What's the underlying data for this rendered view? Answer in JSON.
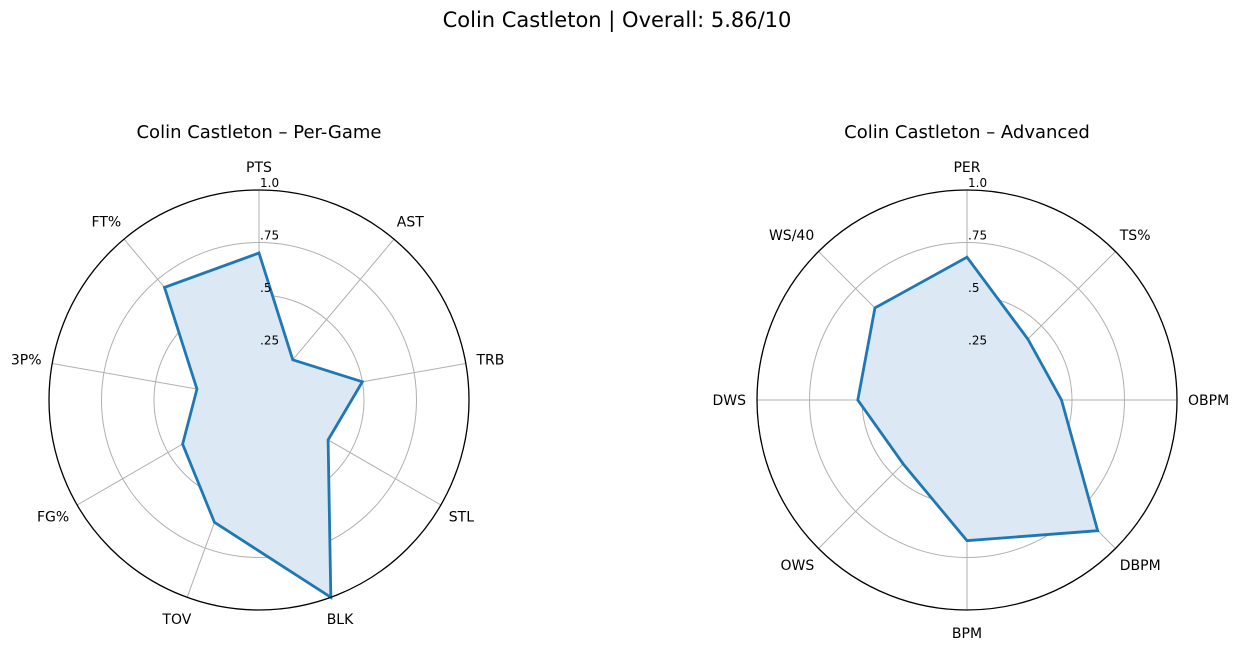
{
  "figure": {
    "suptitle": "Colin Castleton | Overall: 5.86/10"
  },
  "chart_data": [
    {
      "type": "radar",
      "title": "Colin Castleton – Per-Game",
      "axes": [
        "PTS",
        "AST",
        "TRB",
        "STL",
        "BLK",
        "TOV",
        "FG%",
        "3P%",
        "FT%"
      ],
      "values": [
        0.7,
        0.25,
        0.5,
        0.38,
        1.0,
        0.62,
        0.42,
        0.3,
        0.7
      ],
      "rlim": [
        0,
        1
      ],
      "rticks": [
        0.25,
        0.5,
        0.75,
        1.0
      ],
      "rtick_labels": [
        ".25",
        ".5",
        ".75",
        "1.0"
      ],
      "grid": true,
      "line_color": "#1f77b4",
      "fill_color": "#dce8f3"
    },
    {
      "type": "radar",
      "title": "Colin Castleton – Advanced",
      "axes": [
        "PER",
        "TS%",
        "OBPM",
        "DBPM",
        "BPM",
        "OWS",
        "DWS",
        "WS/40"
      ],
      "values": [
        0.68,
        0.41,
        0.45,
        0.88,
        0.67,
        0.43,
        0.52,
        0.62
      ],
      "rlim": [
        0,
        1
      ],
      "rticks": [
        0.25,
        0.5,
        0.75,
        1.0
      ],
      "rtick_labels": [
        ".25",
        ".5",
        ".75",
        "1.0"
      ],
      "grid": true,
      "line_color": "#1f77b4",
      "fill_color": "#dce8f3"
    }
  ]
}
